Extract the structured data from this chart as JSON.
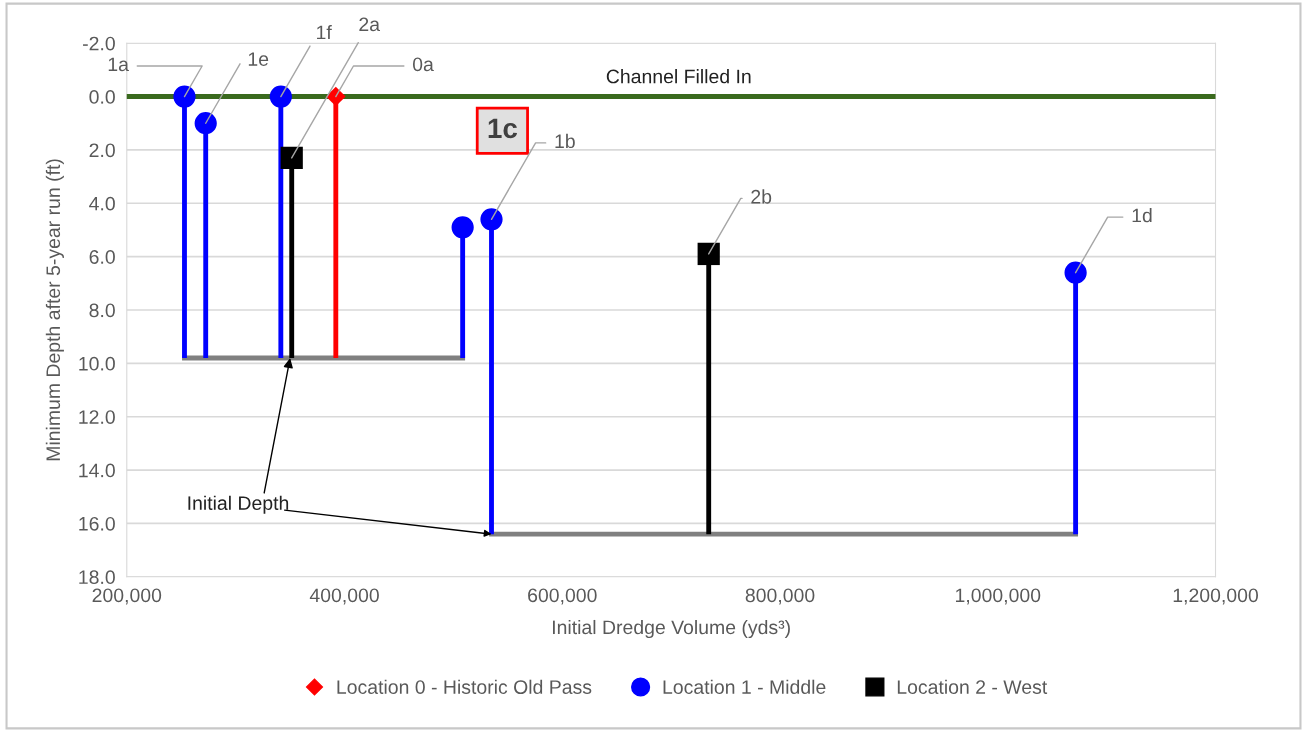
{
  "chart_data": {
    "type": "scatter",
    "xlabel": "Initial Dredge Volume (yds³)",
    "ylabel": "Minimum Depth after 5-year run (ft)",
    "xlim": [
      200000,
      1200000
    ],
    "xticks": [
      {
        "value": 200000,
        "label": "200,000"
      },
      {
        "value": 400000,
        "label": "400,000"
      },
      {
        "value": 600000,
        "label": "600,000"
      },
      {
        "value": 800000,
        "label": "800,000"
      },
      {
        "value": 1000000,
        "label": "1,000,000"
      },
      {
        "value": 1200000,
        "label": "1,200,000"
      }
    ],
    "ylim": [
      18,
      -2
    ],
    "yticks": [
      {
        "value": -2,
        "label": "-2.0"
      },
      {
        "value": 0,
        "label": "0.0"
      },
      {
        "value": 2,
        "label": "2.0"
      },
      {
        "value": 4,
        "label": "4.0"
      },
      {
        "value": 6,
        "label": "6.0"
      },
      {
        "value": 8,
        "label": "8.0"
      },
      {
        "value": 10,
        "label": "10.0"
      },
      {
        "value": 12,
        "label": "12.0"
      },
      {
        "value": 14,
        "label": "14.0"
      },
      {
        "value": 16,
        "label": "16.0"
      },
      {
        "value": 18,
        "label": "18.0"
      }
    ],
    "grid": "y",
    "legend": "bottom",
    "series": [
      {
        "name": "Location 0 - Historic Old Pass",
        "color": "#ff0000",
        "marker": "diamond",
        "x": [
          392000
        ],
        "values": [
          0.0
        ],
        "errors": [
          [
            0.0,
            9.8
          ]
        ]
      },
      {
        "name": "Location 1 - Middle",
        "color": "#0000ff",
        "marker": "circle",
        "x": [
          253000,
          272500,
          341500,
          508500,
          535000,
          1071500
        ],
        "values": [
          0.0,
          1.0,
          0.0,
          4.9,
          4.6,
          6.6
        ],
        "errors": [
          [
            0.0,
            9.8
          ],
          [
            1.0,
            9.8
          ],
          [
            0.0,
            9.8
          ],
          [
            4.9,
            9.8
          ],
          [
            4.6,
            16.4
          ],
          [
            6.6,
            16.4
          ]
        ]
      },
      {
        "name": "Location 2 - West",
        "color": "#000000",
        "marker": "square",
        "x": [
          351500,
          734500
        ],
        "values": [
          2.3,
          5.9
        ],
        "errors": [
          [
            2.3,
            9.8
          ],
          [
            5.9,
            16.4
          ]
        ]
      },
      {
        "type": "line",
        "color": "#808080",
        "x": [
          253000,
          508500
        ],
        "values": [
          9.8,
          9.8
        ]
      },
      {
        "type": "line",
        "color": "#808080",
        "x": [
          535000,
          1071500
        ],
        "values": [
          16.4,
          16.4
        ]
      }
    ],
    "ref_lines": [
      {
        "axis": "y",
        "value": 0,
        "label": "Channel Filled In",
        "color": "#3a6a1e"
      }
    ],
    "annotations": [
      {
        "text": "1a",
        "x": 253000,
        "y": 0.0
      },
      {
        "text": "1e",
        "x": 272500,
        "y": 1.0
      },
      {
        "text": "1f",
        "x": 341500,
        "y": 0.0
      },
      {
        "text": "2a",
        "x": 351500,
        "y": 2.3
      },
      {
        "text": "0a",
        "x": 392000,
        "y": 0.0
      },
      "1c",
      {
        "text": "1b",
        "x": 535000,
        "y": 4.6
      },
      {
        "text": "2b",
        "x": 734500,
        "y": 5.9
      },
      {
        "text": "1d",
        "x": 1071500,
        "y": 6.6
      },
      {
        "text": "Initial Depth",
        "x": 350000,
        "y": 9.8
      }
    ]
  }
}
